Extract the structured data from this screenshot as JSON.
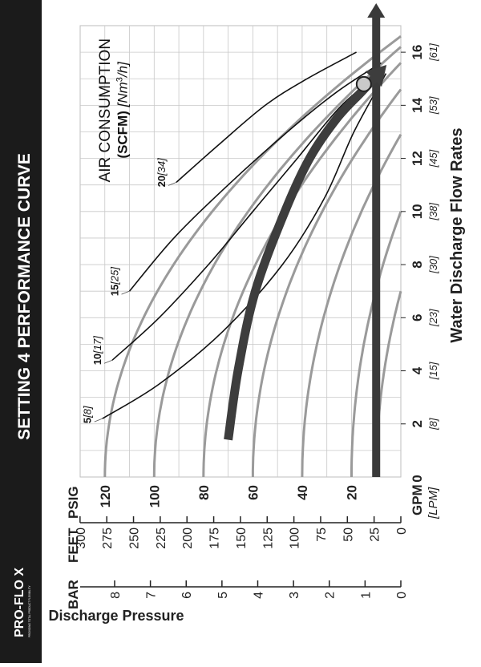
{
  "chart_data": {
    "type": "line",
    "title": "SETTING 4 PERFORMANCE CURVE",
    "brand": {
      "name": "PRO-FLO X",
      "tagline": "PROVIDING TOTAL PRODUCT FLEXIBILITY"
    },
    "xlabel": "Water Discharge Flow Rates",
    "xunit": "GPM",
    "xunit_alt": "[LPM]",
    "xlim": [
      0,
      17
    ],
    "x_ticks": [
      {
        "v": 2,
        "label": "2",
        "alt": "[8]"
      },
      {
        "v": 4,
        "label": "4",
        "alt": "[15]"
      },
      {
        "v": 6,
        "label": "6",
        "alt": "[23]"
      },
      {
        "v": 8,
        "label": "8",
        "alt": "[30]"
      },
      {
        "v": 10,
        "label": "10",
        "alt": "[38]"
      },
      {
        "v": 12,
        "label": "12",
        "alt": "[45]"
      },
      {
        "v": 14,
        "label": "14",
        "alt": "[53]"
      },
      {
        "v": 16,
        "label": "16",
        "alt": "[61]"
      }
    ],
    "x_zero_label": "0",
    "ylabel": "Discharge Pressure",
    "ylim": [
      0,
      130
    ],
    "psig": {
      "header": "PSIG",
      "ticks": [
        0,
        20,
        40,
        60,
        80,
        100,
        120
      ]
    },
    "feet": {
      "header": "FEET",
      "ticks": [
        0,
        25,
        50,
        75,
        100,
        125,
        150,
        175,
        200,
        225,
        250,
        275,
        300
      ]
    },
    "bar": {
      "header": "BAR",
      "ticks": [
        0,
        1,
        2,
        3,
        4,
        5,
        6,
        7,
        8
      ]
    },
    "air_consumption": {
      "title": "AIR CONSUMPTION",
      "unit_bold": "(SCFM)",
      "unit_metric": "[Nm",
      "unit_sup": "3",
      "unit_end": "/h]"
    },
    "pressure_curves": [
      {
        "y0": 120,
        "x_end": 16.6
      },
      {
        "y0": 100,
        "x_end": 16.2
      },
      {
        "y0": 80,
        "x_end": 15.6
      },
      {
        "y0": 60,
        "x_end": 14.6
      },
      {
        "y0": 40,
        "x_end": 12.9
      },
      {
        "y0": 20,
        "x_end": 10.0
      },
      {
        "y0": 10,
        "x_end": 7.0
      }
    ],
    "air_curves": [
      {
        "label": "5",
        "alt": "[8]",
        "points": [
          [
            2.2,
            121
          ],
          [
            3.5,
            98
          ],
          [
            5.5,
            72
          ],
          [
            8,
            48
          ],
          [
            10.5,
            31
          ],
          [
            13,
            19
          ],
          [
            15.2,
            6
          ]
        ]
      },
      {
        "label": "10",
        "alt": "[17]",
        "points": [
          [
            4.4,
            117
          ],
          [
            6,
            98
          ],
          [
            8,
            78
          ],
          [
            10,
            60
          ],
          [
            12,
            42
          ],
          [
            14,
            24
          ],
          [
            15.3,
            7
          ]
        ]
      },
      {
        "label": "15",
        "alt": "[25]",
        "points": [
          [
            7,
            110
          ],
          [
            9,
            92
          ],
          [
            11,
            70
          ],
          [
            13,
            46
          ],
          [
            14.5,
            26
          ],
          [
            15.6,
            8
          ]
        ]
      },
      {
        "label": "20",
        "alt": "[34]",
        "points": [
          [
            11.1,
            91
          ],
          [
            12.5,
            74
          ],
          [
            14,
            55
          ],
          [
            15,
            38
          ],
          [
            16,
            18
          ]
        ]
      }
    ],
    "operating_curve": {
      "points": [
        [
          1.4,
          70
        ],
        [
          4,
          66
        ],
        [
          7,
          59
        ],
        [
          10,
          47
        ],
        [
          12,
          37
        ],
        [
          13.5,
          26
        ],
        [
          14.5,
          16
        ],
        [
          15.3,
          8
        ]
      ]
    },
    "operating_point": {
      "x": 14.8,
      "y": 15
    },
    "target_line": {
      "y": 10
    }
  }
}
